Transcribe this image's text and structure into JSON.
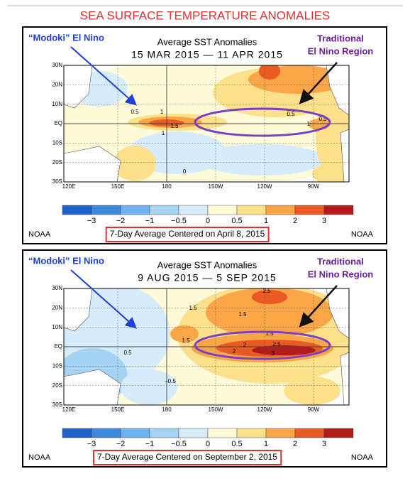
{
  "title": "SEA SURFACE TEMPERATURE ANOMALIES",
  "panels": [
    {
      "annotation_left": "“Modoki” El Nino",
      "annotation_right": [
        "Traditional",
        "El Nino Region"
      ],
      "map_title": "Average SST Anomalies",
      "dates": "15 MAR 2015 — 11 APR 2015",
      "lat_labels": [
        "30N",
        "20N",
        "10N",
        "EQ",
        "10S",
        "20S",
        "30S"
      ],
      "lon_labels": [
        "120E",
        "150E",
        "180",
        "150W",
        "120W",
        "90W"
      ],
      "colorbar_labels": [
        "−3",
        "−2",
        "−1",
        "−0.5",
        "0",
        "0.5",
        "1",
        "2",
        "3"
      ],
      "contour_labels": [
        "0.5",
        "1",
        "1.5",
        "0.5",
        "1",
        "0",
        "0.5",
        "1"
      ],
      "credit_left": "NOAA",
      "credit_right": "NOAA",
      "caption": "7-Day Average Centered on April 8, 2015"
    },
    {
      "annotation_left": "“Modoki” El Nino",
      "annotation_right": [
        "Traditional",
        "El Nino Region"
      ],
      "map_title": "Average SST Anomalies",
      "dates": "9 AUG 2015 — 5 SEP 2015",
      "lat_labels": [
        "30N",
        "20N",
        "10N",
        "EQ",
        "10S",
        "20S",
        "30S"
      ],
      "lon_labels": [
        "120E",
        "150E",
        "180",
        "150W",
        "120W",
        "90W"
      ],
      "colorbar_labels": [
        "−3",
        "−2",
        "−1",
        "−0.5",
        "0",
        "0.5",
        "1",
        "2",
        "3"
      ],
      "contour_labels": [
        "2.5",
        "1.5",
        "1.5",
        "1.5",
        "2",
        "2",
        "2.5",
        "3",
        "1.5",
        "−0.5",
        "0.5"
      ],
      "credit_left": "NOAA",
      "credit_right": "NOAA",
      "caption": "7-Day Average Centered on September 2, 2015"
    }
  ]
}
